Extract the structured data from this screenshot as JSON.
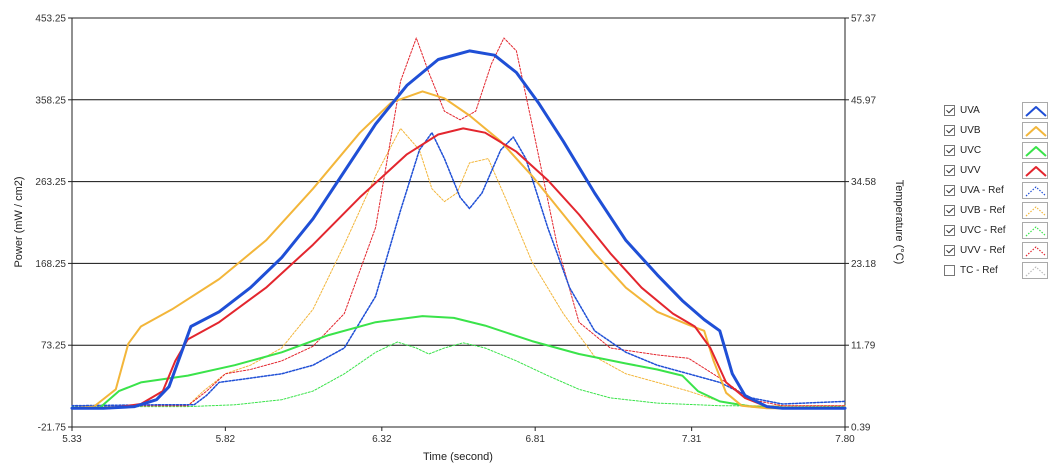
{
  "chart_data": {
    "type": "line",
    "xlabel": "Time (second)",
    "ylabel": "Power (mW / cm2)",
    "y2label": "Temperature (°C)",
    "xlim": [
      5.33,
      7.8
    ],
    "ylim": [
      -21.75,
      453.25
    ],
    "y2lim": [
      0.39,
      57.37
    ],
    "x_ticks": [
      "5.33",
      "5.82",
      "6.32",
      "6.81",
      "7.31",
      "7.80"
    ],
    "y_ticks": [
      "-21.75",
      "73.25",
      "168.25",
      "263.25",
      "358.25",
      "453.25"
    ],
    "y2_ticks": [
      "0.39",
      "11.79",
      "23.18",
      "34.58",
      "45.97",
      "57.37"
    ],
    "grid": "horizontal",
    "series": [
      {
        "name": "UVA",
        "color": "#1f4fd6",
        "style": "solid",
        "width": 3,
        "checked": true,
        "points": [
          [
            5.33,
            0
          ],
          [
            5.43,
            0
          ],
          [
            5.53,
            2
          ],
          [
            5.6,
            10
          ],
          [
            5.64,
            25
          ],
          [
            5.67,
            55
          ],
          [
            5.71,
            95
          ],
          [
            5.8,
            112
          ],
          [
            5.9,
            140
          ],
          [
            6.0,
            175
          ],
          [
            6.1,
            220
          ],
          [
            6.2,
            275
          ],
          [
            6.3,
            330
          ],
          [
            6.4,
            375
          ],
          [
            6.5,
            405
          ],
          [
            6.6,
            415
          ],
          [
            6.68,
            410
          ],
          [
            6.75,
            390
          ],
          [
            6.82,
            355
          ],
          [
            6.9,
            310
          ],
          [
            7.0,
            250
          ],
          [
            7.1,
            195
          ],
          [
            7.2,
            155
          ],
          [
            7.28,
            125
          ],
          [
            7.35,
            103
          ],
          [
            7.4,
            90
          ],
          [
            7.44,
            40
          ],
          [
            7.48,
            15
          ],
          [
            7.55,
            2
          ],
          [
            7.6,
            0
          ],
          [
            7.8,
            0
          ]
        ]
      },
      {
        "name": "UVB",
        "color": "#f3b63a",
        "style": "solid",
        "width": 2,
        "checked": true,
        "points": [
          [
            5.33,
            0
          ],
          [
            5.4,
            2
          ],
          [
            5.47,
            22
          ],
          [
            5.51,
            75
          ],
          [
            5.55,
            95
          ],
          [
            5.65,
            115
          ],
          [
            5.8,
            150
          ],
          [
            5.95,
            195
          ],
          [
            6.1,
            255
          ],
          [
            6.25,
            320
          ],
          [
            6.35,
            355
          ],
          [
            6.45,
            368
          ],
          [
            6.52,
            360
          ],
          [
            6.6,
            340
          ],
          [
            6.7,
            310
          ],
          [
            6.8,
            270
          ],
          [
            6.9,
            225
          ],
          [
            7.0,
            180
          ],
          [
            7.1,
            140
          ],
          [
            7.2,
            112
          ],
          [
            7.3,
            97
          ],
          [
            7.35,
            90
          ],
          [
            7.38,
            55
          ],
          [
            7.42,
            18
          ],
          [
            7.47,
            3
          ],
          [
            7.55,
            0
          ],
          [
            7.8,
            0
          ]
        ]
      },
      {
        "name": "UVC",
        "color": "#3ae34a",
        "style": "solid",
        "width": 2,
        "checked": true,
        "points": [
          [
            5.33,
            0
          ],
          [
            5.42,
            1
          ],
          [
            5.48,
            20
          ],
          [
            5.55,
            30
          ],
          [
            5.7,
            38
          ],
          [
            5.85,
            50
          ],
          [
            6.0,
            65
          ],
          [
            6.15,
            85
          ],
          [
            6.3,
            100
          ],
          [
            6.45,
            107
          ],
          [
            6.55,
            105
          ],
          [
            6.65,
            96
          ],
          [
            6.8,
            78
          ],
          [
            6.95,
            63
          ],
          [
            7.1,
            52
          ],
          [
            7.2,
            45
          ],
          [
            7.28,
            38
          ],
          [
            7.33,
            20
          ],
          [
            7.4,
            8
          ],
          [
            7.5,
            2
          ],
          [
            7.6,
            0
          ],
          [
            7.8,
            0
          ]
        ]
      },
      {
        "name": "UVV",
        "color": "#e3262e",
        "style": "solid",
        "width": 2,
        "checked": true,
        "points": [
          [
            5.33,
            0
          ],
          [
            5.45,
            0
          ],
          [
            5.55,
            5
          ],
          [
            5.62,
            20
          ],
          [
            5.66,
            55
          ],
          [
            5.7,
            80
          ],
          [
            5.8,
            100
          ],
          [
            5.95,
            140
          ],
          [
            6.1,
            190
          ],
          [
            6.25,
            245
          ],
          [
            6.4,
            295
          ],
          [
            6.5,
            318
          ],
          [
            6.58,
            325
          ],
          [
            6.65,
            320
          ],
          [
            6.75,
            298
          ],
          [
            6.85,
            265
          ],
          [
            6.95,
            225
          ],
          [
            7.05,
            180
          ],
          [
            7.15,
            140
          ],
          [
            7.25,
            110
          ],
          [
            7.32,
            95
          ],
          [
            7.37,
            70
          ],
          [
            7.42,
            30
          ],
          [
            7.48,
            12
          ],
          [
            7.55,
            2
          ],
          [
            7.6,
            0
          ],
          [
            7.8,
            0
          ]
        ]
      },
      {
        "name": "UVA - Ref",
        "color": "#1f4fd6",
        "style": "dotted",
        "width": 1.5,
        "checked": true,
        "points": [
          [
            5.33,
            3
          ],
          [
            5.6,
            4
          ],
          [
            5.72,
            4
          ],
          [
            5.76,
            15
          ],
          [
            5.8,
            30
          ],
          [
            5.9,
            35
          ],
          [
            6.0,
            40
          ],
          [
            6.1,
            50
          ],
          [
            6.2,
            70
          ],
          [
            6.3,
            130
          ],
          [
            6.38,
            230
          ],
          [
            6.44,
            300
          ],
          [
            6.48,
            320
          ],
          [
            6.52,
            290
          ],
          [
            6.57,
            245
          ],
          [
            6.6,
            232
          ],
          [
            6.64,
            250
          ],
          [
            6.7,
            300
          ],
          [
            6.74,
            315
          ],
          [
            6.78,
            290
          ],
          [
            6.85,
            210
          ],
          [
            6.92,
            140
          ],
          [
            7.0,
            90
          ],
          [
            7.1,
            65
          ],
          [
            7.2,
            50
          ],
          [
            7.3,
            40
          ],
          [
            7.4,
            30
          ],
          [
            7.5,
            12
          ],
          [
            7.6,
            5
          ],
          [
            7.8,
            8
          ]
        ]
      },
      {
        "name": "UVB - Ref",
        "color": "#f3b63a",
        "style": "dotted",
        "width": 1,
        "checked": true,
        "points": [
          [
            5.33,
            3
          ],
          [
            5.6,
            3
          ],
          [
            5.7,
            3
          ],
          [
            5.75,
            20
          ],
          [
            5.82,
            40
          ],
          [
            5.9,
            50
          ],
          [
            6.0,
            70
          ],
          [
            6.1,
            115
          ],
          [
            6.2,
            190
          ],
          [
            6.3,
            270
          ],
          [
            6.38,
            325
          ],
          [
            6.44,
            300
          ],
          [
            6.48,
            255
          ],
          [
            6.52,
            240
          ],
          [
            6.56,
            250
          ],
          [
            6.6,
            285
          ],
          [
            6.66,
            290
          ],
          [
            6.72,
            240
          ],
          [
            6.8,
            170
          ],
          [
            6.9,
            110
          ],
          [
            7.0,
            60
          ],
          [
            7.1,
            40
          ],
          [
            7.2,
            30
          ],
          [
            7.3,
            20
          ],
          [
            7.4,
            8
          ],
          [
            7.5,
            3
          ],
          [
            7.8,
            3
          ]
        ]
      },
      {
        "name": "UVC - Ref",
        "color": "#3ae34a",
        "style": "dotted",
        "width": 1,
        "checked": true,
        "points": [
          [
            5.33,
            2
          ],
          [
            5.7,
            2
          ],
          [
            5.85,
            4
          ],
          [
            6.0,
            10
          ],
          [
            6.1,
            20
          ],
          [
            6.2,
            40
          ],
          [
            6.3,
            65
          ],
          [
            6.37,
            77
          ],
          [
            6.43,
            70
          ],
          [
            6.47,
            63
          ],
          [
            6.52,
            70
          ],
          [
            6.58,
            76
          ],
          [
            6.65,
            70
          ],
          [
            6.75,
            55
          ],
          [
            6.85,
            38
          ],
          [
            6.95,
            22
          ],
          [
            7.05,
            12
          ],
          [
            7.2,
            6
          ],
          [
            7.4,
            3
          ],
          [
            7.8,
            2
          ]
        ]
      },
      {
        "name": "UVV - Ref",
        "color": "#e3262e",
        "style": "dotted",
        "width": 1,
        "checked": true,
        "points": [
          [
            5.33,
            3
          ],
          [
            5.7,
            3
          ],
          [
            5.76,
            20
          ],
          [
            5.82,
            40
          ],
          [
            5.9,
            45
          ],
          [
            6.0,
            55
          ],
          [
            6.1,
            72
          ],
          [
            6.2,
            110
          ],
          [
            6.3,
            210
          ],
          [
            6.38,
            380
          ],
          [
            6.43,
            430
          ],
          [
            6.47,
            390
          ],
          [
            6.52,
            345
          ],
          [
            6.57,
            335
          ],
          [
            6.62,
            345
          ],
          [
            6.67,
            400
          ],
          [
            6.71,
            430
          ],
          [
            6.75,
            415
          ],
          [
            6.8,
            330
          ],
          [
            6.88,
            190
          ],
          [
            6.95,
            100
          ],
          [
            7.05,
            70
          ],
          [
            7.2,
            62
          ],
          [
            7.3,
            58
          ],
          [
            7.4,
            35
          ],
          [
            7.5,
            10
          ],
          [
            7.6,
            3
          ],
          [
            7.8,
            3
          ]
        ]
      },
      {
        "name": "TC - Ref",
        "color": "#bbbbbb",
        "style": "dotted",
        "width": 1,
        "checked": false,
        "points": []
      }
    ]
  }
}
